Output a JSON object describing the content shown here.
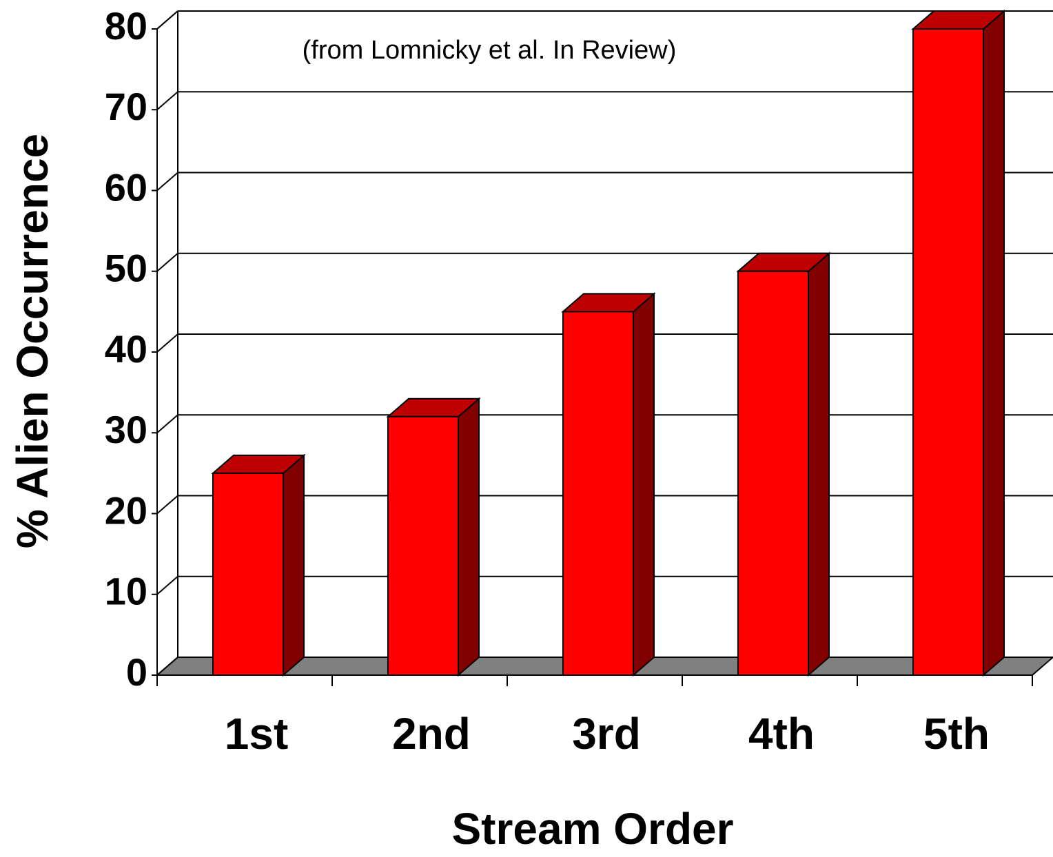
{
  "chart_data": {
    "type": "bar3d",
    "annotation": "(from Lomnicky et al. In Review)",
    "xlabel": "Stream Order",
    "ylabel": "% Alien Occurrence",
    "categories": [
      "1st",
      "2nd",
      "3rd",
      "4th",
      "5th"
    ],
    "values": [
      25,
      32,
      45,
      50,
      80
    ],
    "color": "#ff0000",
    "ylim": [
      0,
      80
    ],
    "yticks": [
      0,
      10,
      20,
      30,
      40,
      50,
      60,
      70,
      80
    ],
    "grid": true
  }
}
